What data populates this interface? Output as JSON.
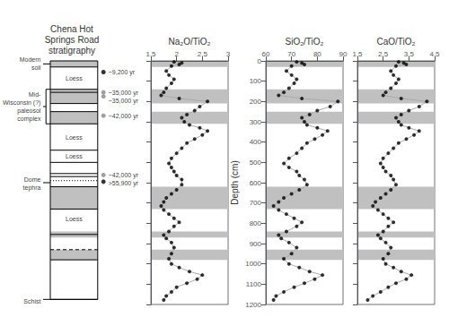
{
  "chart_data": [
    {
      "type": "stratigraphy",
      "title": "Chena Hot\nSprings Road\nstratigraphy",
      "ylim": [
        1200,
        0
      ],
      "tick_labels": false,
      "series": [
        {
          "type": "column",
          "values": [
            0,
            1175
          ]
        },
        {
          "type": "band",
          "color": "#c0c0c0",
          "values": [
            [
              0,
              30
            ],
            [
              140,
              210
            ],
            [
              250,
              310
            ],
            [
              620,
              730
            ],
            [
              840,
              870
            ],
            [
              930,
              980
            ]
          ]
        },
        {
          "type": "boundary",
          "line_style": "solid",
          "values": [
            30,
            140,
            155,
            210,
            250,
            310,
            440,
            500,
            555,
            570,
            620,
            730,
            855,
            980,
            1175
          ]
        },
        {
          "type": "boundary",
          "line_style": "dotted",
          "values": [
            590
          ]
        },
        {
          "type": "boundary",
          "line_style": "dashed",
          "values": [
            930
          ]
        }
      ],
      "annotations": [
        {
          "text": "Loess",
          "value": 85,
          "position": "inside"
        },
        {
          "text": "Loess",
          "value": 375,
          "position": "inside"
        },
        {
          "text": "Loess",
          "value": 470,
          "position": "inside"
        },
        {
          "text": "Loess",
          "value": 780,
          "position": "inside"
        },
        {
          "text": "Modern\nsoil",
          "value": 15,
          "position": "left",
          "line": 15
        },
        {
          "text": "Mid-\nWisconsin (?)\npaleosol\ncomplex",
          "value": 225,
          "position": "left",
          "span": [
            140,
            310
          ]
        },
        {
          "text": "Dome\ntephra",
          "value": 605,
          "position": "left",
          "line": 600
        },
        {
          "text": "Schist",
          "value": 1183,
          "position": "left",
          "line": 1175
        },
        {
          "text": "~9,200 yr",
          "value": 55,
          "position": "right",
          "marker": "circle",
          "color": "#000000"
        },
        {
          "text": "~35,000 yr",
          "value": 155,
          "position": "right",
          "marker": "circle",
          "color": "#888888"
        },
        {
          "text": "~35,000 yr",
          "value": 175,
          "position": "right",
          "marker": "circle",
          "color": "#888888"
        },
        {
          "text": "~42,000 yr",
          "value": 270,
          "position": "right",
          "marker": "circle",
          "color": "#888888"
        },
        {
          "text": "~42,000 yr",
          "value": 562,
          "position": "right",
          "marker": "circle",
          "color": "#888888"
        },
        {
          "text": ">55,900 yr",
          "value": 595,
          "position": "right",
          "marker": "circle",
          "color": "#000000"
        }
      ]
    },
    {
      "type": "line",
      "title": "Na₂O/TiO₂",
      "xlim": [
        1.5,
        3.0
      ],
      "xticks": [
        1.5,
        2,
        2.5,
        3
      ],
      "ylim": [
        1200,
        0
      ],
      "yticks": [
        0,
        100,
        200,
        300,
        400,
        500,
        600,
        700,
        800,
        900,
        1000,
        1100,
        1200
      ],
      "tick_labels": "x",
      "grid": false,
      "x": [
        1.95,
        2.1,
        2.05,
        1.9,
        1.8,
        1.85,
        1.95,
        1.9,
        1.8,
        1.75,
        1.7,
        2.05,
        2.6,
        2.45,
        2.35,
        2.2,
        2.1,
        2.15,
        2.25,
        2.45,
        2.6,
        2.5,
        2.35,
        2.2,
        2.1,
        2.0,
        1.9,
        1.85,
        1.9,
        1.95,
        2.0,
        2.1,
        2.1,
        2.0,
        1.9,
        1.8,
        1.75,
        1.7,
        1.75,
        1.85,
        1.95,
        2.05,
        1.95,
        1.85,
        1.75,
        1.8,
        1.9,
        1.95,
        1.9,
        1.85,
        1.9,
        2.05,
        2.25,
        2.5,
        2.4,
        2.2,
        2.0,
        1.9,
        1.8,
        1.75
      ],
      "values": [
        5,
        10,
        18,
        25,
        50,
        70,
        90,
        110,
        135,
        155,
        170,
        185,
        200,
        225,
        245,
        265,
        280,
        300,
        315,
        330,
        345,
        365,
        385,
        405,
        430,
        455,
        480,
        505,
        525,
        545,
        565,
        585,
        610,
        635,
        655,
        675,
        695,
        715,
        735,
        755,
        775,
        795,
        815,
        840,
        858,
        875,
        895,
        920,
        950,
        975,
        1000,
        1018,
        1038,
        1055,
        1075,
        1095,
        1115,
        1138,
        1158,
        1178
      ],
      "series": [
        {
          "type": "band",
          "color": "#c0c0c0",
          "values": [
            [
              0,
              30
            ],
            [
              140,
              210
            ],
            [
              250,
              310
            ],
            [
              620,
              730
            ],
            [
              840,
              870
            ],
            [
              930,
              980
            ]
          ]
        },
        {
          "type": "line",
          "color": "#aaaaaa"
        },
        {
          "type": "scatter",
          "color": "#000000",
          "marker": "circle"
        }
      ]
    },
    {
      "type": "line",
      "title": "SiO₂/TiO₂",
      "ylabel": "Depth (cm)",
      "xlim": [
        60,
        90
      ],
      "xticks": [
        60,
        70,
        80,
        90
      ],
      "ylim": [
        1200,
        0
      ],
      "yticks": [
        0,
        100,
        200,
        300,
        400,
        500,
        600,
        700,
        800,
        900,
        1000,
        1100,
        1200
      ],
      "grid": false,
      "x": [
        72,
        74,
        75,
        70,
        68,
        70,
        72,
        71,
        69,
        67,
        65,
        74,
        88,
        85,
        80,
        77,
        74,
        75,
        76,
        80,
        84,
        82,
        79,
        76,
        74,
        72,
        69,
        67,
        69,
        72,
        73,
        75,
        76,
        73,
        70,
        67,
        65,
        63,
        65,
        68,
        71,
        74,
        72,
        68,
        65,
        66,
        69,
        72,
        70,
        67,
        69,
        73,
        77,
        82,
        79,
        75,
        71,
        67,
        64,
        63
      ],
      "values": [
        5,
        10,
        18,
        25,
        50,
        70,
        90,
        110,
        135,
        155,
        170,
        185,
        200,
        225,
        245,
        265,
        280,
        300,
        315,
        330,
        345,
        365,
        385,
        405,
        430,
        455,
        480,
        505,
        525,
        545,
        565,
        585,
        610,
        635,
        655,
        675,
        695,
        715,
        735,
        755,
        775,
        795,
        815,
        840,
        858,
        875,
        895,
        920,
        950,
        975,
        1000,
        1018,
        1038,
        1055,
        1075,
        1095,
        1115,
        1138,
        1158,
        1178
      ],
      "series": [
        {
          "type": "band",
          "color": "#c0c0c0",
          "values": [
            [
              0,
              30
            ],
            [
              140,
              210
            ],
            [
              250,
              310
            ],
            [
              620,
              730
            ],
            [
              840,
              870
            ],
            [
              930,
              980
            ]
          ]
        },
        {
          "type": "line",
          "color": "#aaaaaa"
        },
        {
          "type": "scatter",
          "color": "#000000",
          "marker": "circle"
        }
      ]
    },
    {
      "type": "line",
      "title": "CaO/TiO₂",
      "xlim": [
        1.5,
        4.5
      ],
      "xticks": [
        1.5,
        2.5,
        3.5,
        4.5
      ],
      "ylim": [
        1200,
        0
      ],
      "yticks": [
        0,
        100,
        200,
        300,
        400,
        500,
        600,
        700,
        800,
        900,
        1000,
        1100,
        1200
      ],
      "tick_labels": "x",
      "grid": false,
      "x": [
        3.1,
        3.3,
        3.4,
        3.0,
        2.8,
        2.9,
        3.1,
        3.0,
        2.8,
        2.6,
        2.5,
        3.2,
        4.2,
        3.9,
        3.5,
        3.2,
        3.0,
        3.1,
        3.2,
        3.5,
        3.9,
        3.7,
        3.4,
        3.1,
        2.9,
        2.7,
        2.5,
        2.4,
        2.5,
        2.6,
        2.8,
        2.9,
        3.0,
        2.8,
        2.6,
        2.4,
        2.2,
        2.1,
        2.3,
        2.5,
        2.7,
        2.9,
        2.7,
        2.5,
        2.3,
        2.4,
        2.6,
        2.8,
        2.7,
        2.5,
        2.6,
        2.9,
        3.2,
        3.6,
        3.4,
        3.0,
        2.7,
        2.4,
        2.1,
        1.9
      ],
      "values": [
        5,
        10,
        18,
        25,
        50,
        70,
        90,
        110,
        135,
        155,
        170,
        185,
        200,
        225,
        245,
        265,
        280,
        300,
        315,
        330,
        345,
        365,
        385,
        405,
        430,
        455,
        480,
        505,
        525,
        545,
        565,
        585,
        610,
        635,
        655,
        675,
        695,
        715,
        735,
        755,
        775,
        795,
        815,
        840,
        858,
        875,
        895,
        920,
        950,
        975,
        1000,
        1018,
        1038,
        1055,
        1075,
        1095,
        1115,
        1138,
        1158,
        1178
      ],
      "series": [
        {
          "type": "band",
          "color": "#c0c0c0",
          "values": [
            [
              0,
              30
            ],
            [
              140,
              210
            ],
            [
              250,
              310
            ],
            [
              620,
              730
            ],
            [
              840,
              870
            ],
            [
              930,
              980
            ]
          ]
        },
        {
          "type": "line",
          "color": "#aaaaaa"
        },
        {
          "type": "scatter",
          "color": "#000000",
          "marker": "circle"
        }
      ]
    }
  ]
}
